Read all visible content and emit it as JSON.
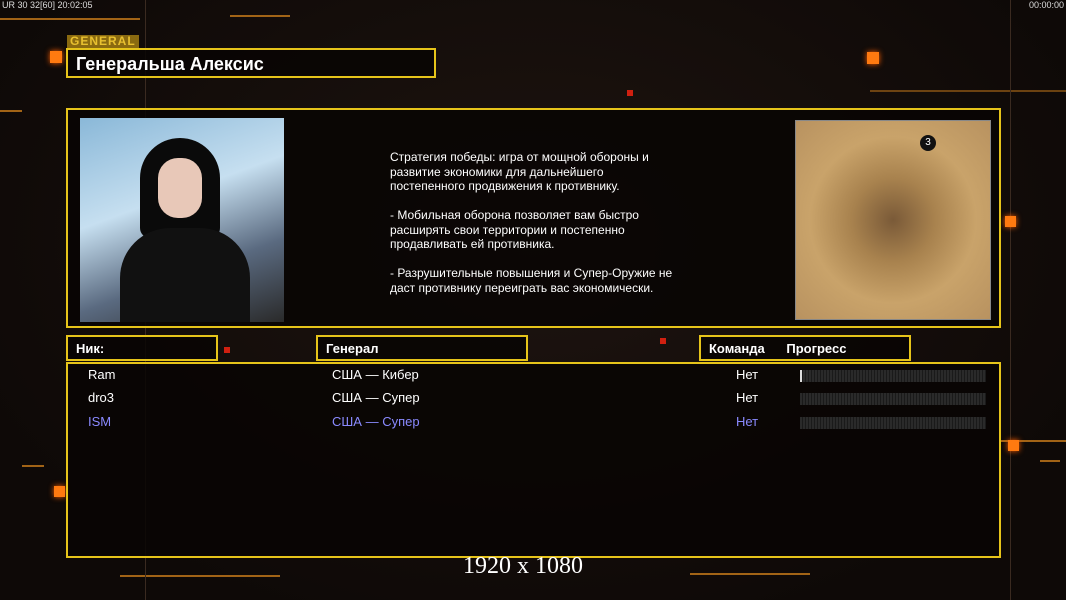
{
  "hud": {
    "left_fps": "UR 30 32[60] 20:02:05",
    "right_clock": "00:00:00"
  },
  "general": {
    "tag": "GENERAL",
    "name": "Генеральша Алексис",
    "description": "Стратегия победы: игра от мощной обороны и\n развитие экономики для дальнейшего\n постепенного продвижения к противнику.\n\n- Мобильная оборона позволяет вам быстро\n расширять свои территории и постепенно\n продавливать ей противника.\n\n- Разрушительные повышения и Супер-Оружие не\n даст противнику переиграть вас экономически.",
    "map_badge": "3"
  },
  "columns": {
    "nick": "Ник:",
    "general": "Генерал",
    "team": "Команда",
    "progress": "Прогресс"
  },
  "players": [
    {
      "nick": "Ram",
      "general": "США — Кибер",
      "team": "Нет",
      "progress_pct": 1,
      "color": "#ffffff"
    },
    {
      "nick": "dro3",
      "general": "США — Супер",
      "team": "Нет",
      "progress_pct": 0,
      "color": "#ffffff"
    },
    {
      "nick": "ISM",
      "general": "США — Супер",
      "team": "Нет",
      "progress_pct": 0,
      "color": "#8a8aff"
    }
  ],
  "resolution": "1920 x 1080",
  "colors": {
    "frame": "#e6c41a",
    "accent": "#ff7a10",
    "local_player": "#8a8aff"
  }
}
